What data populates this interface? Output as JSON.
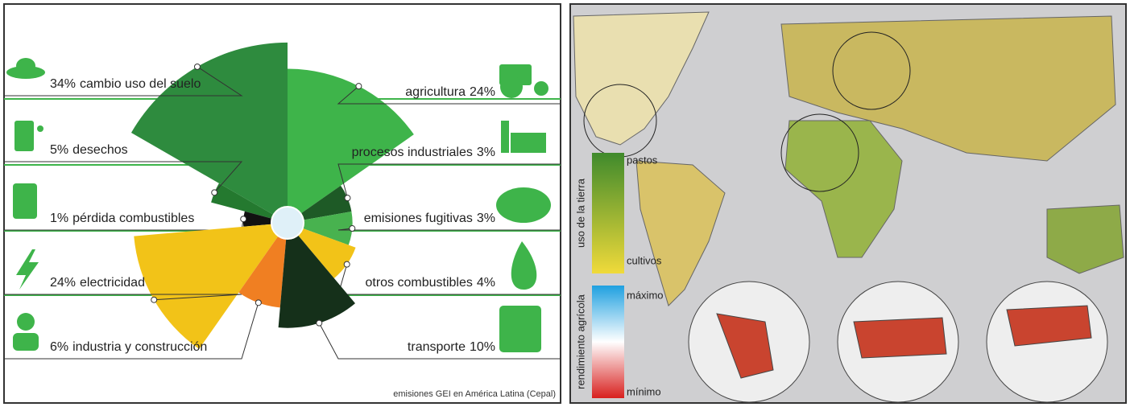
{
  "chart_data": {
    "type": "rose",
    "categories": [
      "cambio uso del suelo",
      "desechos",
      "pérdida combustibles",
      "electricidad",
      "industria y construcción",
      "agricultura",
      "procesos industriales",
      "emisiones fugitivas",
      "otros combustibles",
      "transporte"
    ],
    "values": [
      34,
      5,
      1,
      24,
      6,
      24,
      3,
      3,
      4,
      10
    ],
    "value_labels": [
      "34%",
      "5%",
      "1%",
      "24%",
      "6%",
      "24%",
      "3%",
      "3%",
      "4%",
      "10%"
    ],
    "colors": [
      "#2e8b3e",
      "#24792f",
      "#111111",
      "#f2c318",
      "#f07f22",
      "#3eb44a",
      "#1e5a26",
      "#48b24f",
      "#f2c318",
      "#15301a"
    ],
    "source": "emisiones GEI en América Latina (Cepal)"
  },
  "map": {
    "land_use_legend": {
      "title": "uso de la tierra",
      "top": "pastos",
      "bottom": "cultivos"
    },
    "yield_legend": {
      "title": "rendimiento agrícola",
      "top": "máximo",
      "bottom": "mínimo"
    }
  }
}
